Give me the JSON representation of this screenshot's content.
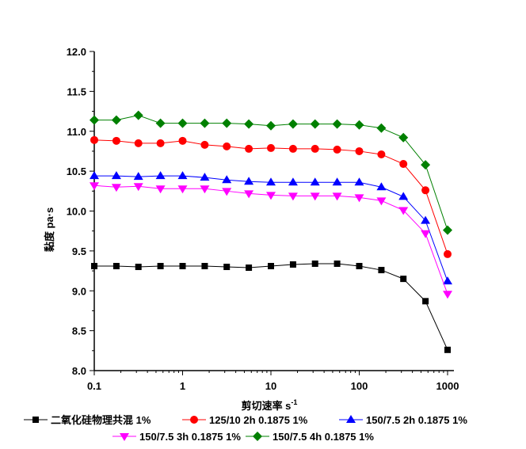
{
  "chart_data": {
    "type": "line",
    "title": "",
    "xlabel": "剪切速率 s",
    "xlabel_sup": "-1",
    "ylabel": "黏度 pa·s",
    "xscale": "log",
    "xlim": [
      0.1,
      1000
    ],
    "ylim": [
      8.0,
      12.0
    ],
    "xticks": [
      "0.1",
      "1",
      "10",
      "100",
      "1000"
    ],
    "yticks": [
      "8.0",
      "8.5",
      "9.0",
      "9.5",
      "10.0",
      "10.5",
      "11.0",
      "11.5",
      "12.0"
    ],
    "legend_position": "bottom",
    "x": [
      0.1,
      0.178,
      0.316,
      0.562,
      1,
      1.78,
      3.16,
      5.62,
      10,
      17.8,
      31.6,
      56.2,
      100,
      178,
      316,
      562,
      1000
    ],
    "series": [
      {
        "name": "二氧化硅物理共混 1%",
        "color": "#000000",
        "marker": "square",
        "values": [
          9.31,
          9.31,
          9.3,
          9.31,
          9.31,
          9.31,
          9.3,
          9.29,
          9.31,
          9.33,
          9.34,
          9.34,
          9.31,
          9.26,
          9.15,
          8.87,
          8.26
        ]
      },
      {
        "name": "125/10 2h 0.1875 1%",
        "color": "#ff0000",
        "marker": "circle",
        "values": [
          10.89,
          10.88,
          10.85,
          10.85,
          10.88,
          10.83,
          10.81,
          10.78,
          10.79,
          10.78,
          10.78,
          10.77,
          10.75,
          10.71,
          10.59,
          10.26,
          9.46
        ]
      },
      {
        "name": "150/7.5 2h 0.1875 1%",
        "color": "#0000ff",
        "marker": "triangle-up",
        "values": [
          10.44,
          10.44,
          10.43,
          10.44,
          10.44,
          10.42,
          10.39,
          10.37,
          10.36,
          10.36,
          10.36,
          10.36,
          10.36,
          10.3,
          10.18,
          9.88,
          9.12
        ]
      },
      {
        "name": "150/7.5 3h 0.1875 1%",
        "color": "#ff00ff",
        "marker": "triangle-down",
        "values": [
          10.32,
          10.3,
          10.31,
          10.28,
          10.28,
          10.28,
          10.25,
          10.22,
          10.2,
          10.19,
          10.19,
          10.19,
          10.17,
          10.13,
          10.01,
          9.72,
          8.96
        ]
      },
      {
        "name": "150/7.5 4h 0.1875 1%",
        "color": "#008000",
        "marker": "diamond",
        "values": [
          11.14,
          11.14,
          11.2,
          11.1,
          11.1,
          11.1,
          11.1,
          11.09,
          11.07,
          11.09,
          11.09,
          11.09,
          11.08,
          11.04,
          10.92,
          10.58,
          9.76
        ]
      }
    ]
  }
}
